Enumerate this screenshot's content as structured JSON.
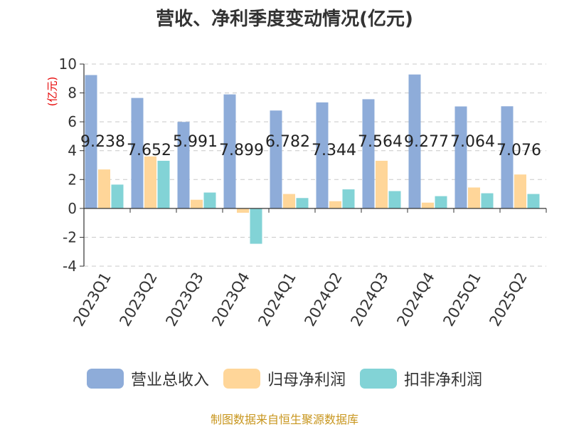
{
  "title": "营收、净利季度变动情况(亿元)",
  "source": "制图数据来自恒生聚源数据库",
  "chart_data": {
    "type": "bar",
    "title": "营收、净利季度变动情况(亿元)",
    "ylabel": "(亿元)",
    "ylim": [
      -4,
      10
    ],
    "yticks": [
      -4,
      -2,
      0,
      2,
      4,
      6,
      8,
      10
    ],
    "grid": true,
    "legend_position": "bottom",
    "categories": [
      "2023Q1",
      "2023Q2",
      "2023Q3",
      "2023Q4",
      "2024Q1",
      "2024Q2",
      "2024Q3",
      "2024Q4",
      "2025Q1",
      "2025Q2"
    ],
    "series": [
      {
        "name": "营业总收入",
        "color": "#8eacd9",
        "values": [
          9.238,
          7.652,
          5.991,
          7.899,
          6.782,
          7.344,
          7.564,
          9.277,
          7.064,
          7.076
        ],
        "labels": [
          "9.238",
          "7.652",
          "5.991",
          "7.899",
          "6.782",
          "7.344",
          "7.564",
          "9.277",
          "7.064",
          "7.076"
        ]
      },
      {
        "name": "归母净利润",
        "color": "#ffd699",
        "values": [
          2.7,
          3.6,
          0.6,
          -0.3,
          1.0,
          0.5,
          3.3,
          0.4,
          1.45,
          2.35
        ]
      },
      {
        "name": "扣非净利润",
        "color": "#82d3d6",
        "values": [
          1.65,
          3.3,
          1.1,
          -2.45,
          0.72,
          1.32,
          1.2,
          0.85,
          1.05,
          1.0
        ]
      }
    ]
  }
}
